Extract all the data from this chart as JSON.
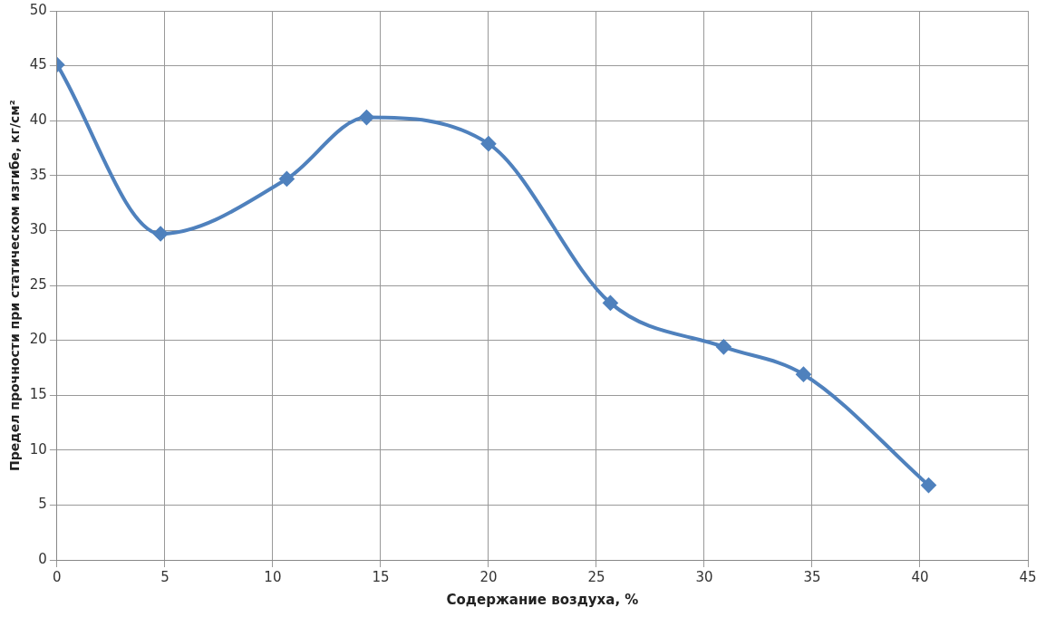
{
  "chart_data": {
    "type": "line",
    "xlabel": "Содержание воздуха, %",
    "ylabel": "Предел прочности при статическом изгибе, кг/см²",
    "x": [
      0,
      4.8,
      10.65,
      14.35,
      20,
      25.65,
      30.9,
      34.6,
      40.4
    ],
    "series": [
      {
        "color": "#4f81bd",
        "values": [
          45.1,
          29.7,
          34.7,
          40.3,
          37.9,
          23.4,
          19.4,
          16.9,
          6.8
        ]
      }
    ],
    "xlim": [
      0,
      45
    ],
    "xticks": [
      0,
      5,
      10,
      15,
      20,
      25,
      30,
      35,
      40,
      45
    ],
    "ylim": [
      0,
      50
    ],
    "yticks": [
      0,
      5,
      10,
      15,
      20,
      25,
      30,
      35,
      40,
      45,
      50
    ],
    "grid": true,
    "legend": false,
    "marker": "diamond",
    "line_style": "solid"
  }
}
